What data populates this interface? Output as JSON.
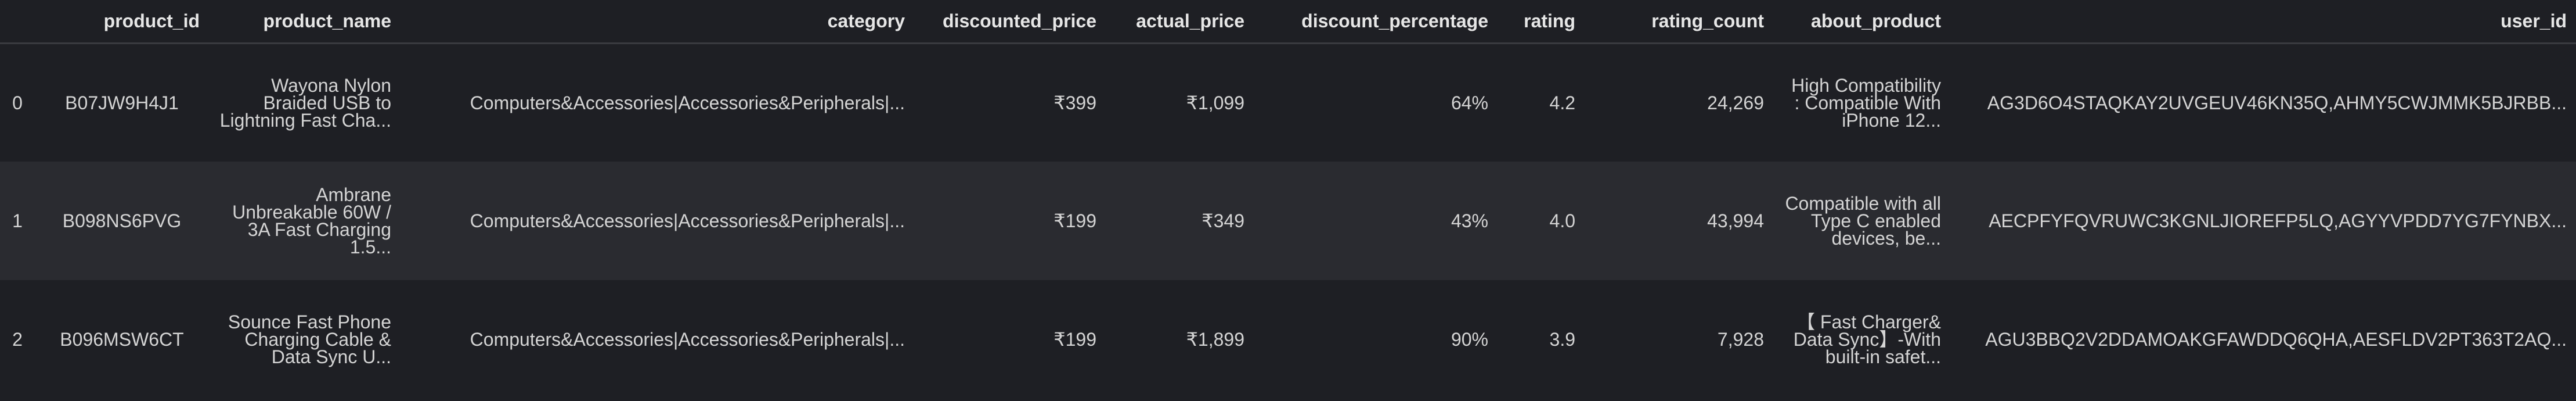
{
  "table": {
    "columns": [
      "product_id",
      "product_name",
      "category",
      "discounted_price",
      "actual_price",
      "discount_percentage",
      "rating",
      "rating_count",
      "about_product",
      "user_id"
    ],
    "rows": [
      {
        "index": "0",
        "product_id": "B07JW9H4J1",
        "product_name": "Wayona Nylon Braided USB to Lightning Fast Cha...",
        "category": "Computers&Accessories|Accessories&Peripherals|...",
        "discounted_price": "₹399",
        "actual_price": "₹1,099",
        "discount_percentage": "64%",
        "rating": "4.2",
        "rating_count": "24,269",
        "about_product": "High Compatibility : Compatible With iPhone 12...",
        "user_id": "AG3D6O4STAQKAY2UVGEUV46KN35Q,AHMY5CWJMMK5BJRBB..."
      },
      {
        "index": "1",
        "product_id": "B098NS6PVG",
        "product_name": "Ambrane Unbreakable 60W / 3A Fast Charging 1.5...",
        "category": "Computers&Accessories|Accessories&Peripherals|...",
        "discounted_price": "₹199",
        "actual_price": "₹349",
        "discount_percentage": "43%",
        "rating": "4.0",
        "rating_count": "43,994",
        "about_product": "Compatible with all Type C enabled devices, be...",
        "user_id": "AECPFYFQVRUWC3KGNLJIOREFP5LQ,AGYYVPDD7YG7FYNBX..."
      },
      {
        "index": "2",
        "product_id": "B096MSW6CT",
        "product_name": "Sounce Fast Phone Charging Cable & Data Sync U...",
        "category": "Computers&Accessories|Accessories&Peripherals|...",
        "discounted_price": "₹199",
        "actual_price": "₹1,899",
        "discount_percentage": "90%",
        "rating": "3.9",
        "rating_count": "7,928",
        "about_product": "【 Fast Charger& Data Sync】-With built-in safet...",
        "user_id": "AGU3BBQ2V2DDAMOAKGFAWDDQ6QHA,AESFLDV2PT363T2AQ..."
      }
    ]
  }
}
